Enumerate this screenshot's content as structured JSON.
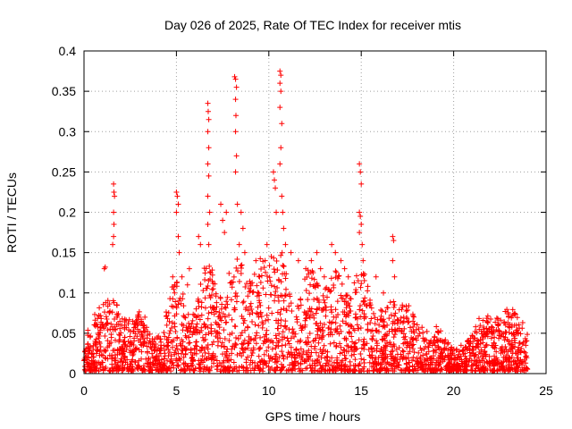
{
  "chart_data": {
    "type": "scatter",
    "title": "Day 026 of 2025, Rate Of TEC Index for receiver mtis",
    "xlabel": "GPS time / hours",
    "ylabel": "ROTI / TECUs",
    "xlim": [
      0,
      25
    ],
    "ylim": [
      0,
      0.4
    ],
    "xticks": [
      0,
      5,
      10,
      15,
      20,
      25
    ],
    "yticks": [
      0,
      0.05,
      0.1,
      0.15,
      0.2,
      0.25,
      0.3,
      0.35,
      0.4
    ],
    "xtick_labels": [
      "0",
      "5",
      "10",
      "15",
      "20",
      "25"
    ],
    "ytick_labels": [
      "0",
      "0.05",
      "0.1",
      "0.15",
      "0.2",
      "0.25",
      "0.3",
      "0.35",
      "0.4"
    ],
    "grid": true,
    "marker": "plus",
    "color": "#ff0000",
    "x_data_range": [
      0,
      24
    ],
    "series": [
      {
        "points": [
          [
            1.1,
            0.13
          ],
          [
            1.15,
            0.132
          ],
          [
            1.6,
            0.235
          ],
          [
            1.62,
            0.225
          ],
          [
            1.65,
            0.22
          ],
          [
            1.6,
            0.2
          ],
          [
            1.62,
            0.185
          ],
          [
            1.6,
            0.17
          ],
          [
            1.55,
            0.16
          ],
          [
            2.4,
            0.04
          ],
          [
            2.9,
            0.07
          ],
          [
            3.1,
            0.065
          ],
          [
            3.2,
            0.06
          ],
          [
            4.8,
            0.12
          ],
          [
            4.9,
            0.1
          ],
          [
            5.0,
            0.225
          ],
          [
            5.05,
            0.22
          ],
          [
            5.1,
            0.21
          ],
          [
            5.0,
            0.2
          ],
          [
            5.1,
            0.17
          ],
          [
            5.15,
            0.15
          ],
          [
            5.3,
            0.12
          ],
          [
            5.7,
            0.13
          ],
          [
            5.6,
            0.11
          ],
          [
            6.2,
            0.17
          ],
          [
            6.3,
            0.16
          ],
          [
            6.7,
            0.335
          ],
          [
            6.72,
            0.325
          ],
          [
            6.75,
            0.315
          ],
          [
            6.7,
            0.3
          ],
          [
            6.75,
            0.28
          ],
          [
            6.7,
            0.26
          ],
          [
            6.75,
            0.245
          ],
          [
            6.7,
            0.22
          ],
          [
            6.8,
            0.2
          ],
          [
            6.7,
            0.185
          ],
          [
            6.75,
            0.16
          ],
          [
            7.4,
            0.21
          ],
          [
            7.5,
            0.19
          ],
          [
            7.6,
            0.175
          ],
          [
            7.7,
            0.2
          ],
          [
            8.15,
            0.368
          ],
          [
            8.2,
            0.365
          ],
          [
            8.25,
            0.355
          ],
          [
            8.2,
            0.34
          ],
          [
            8.22,
            0.32
          ],
          [
            8.2,
            0.3
          ],
          [
            8.25,
            0.27
          ],
          [
            8.2,
            0.25
          ],
          [
            8.3,
            0.21
          ],
          [
            8.5,
            0.2
          ],
          [
            8.6,
            0.18
          ],
          [
            8.4,
            0.16
          ],
          [
            8.7,
            0.15
          ],
          [
            9.3,
            0.14
          ],
          [
            9.5,
            0.12
          ],
          [
            9.8,
            0.14
          ],
          [
            9.9,
            0.16
          ],
          [
            10.25,
            0.25
          ],
          [
            10.3,
            0.24
          ],
          [
            10.35,
            0.23
          ],
          [
            10.4,
            0.2
          ],
          [
            10.6,
            0.375
          ],
          [
            10.65,
            0.37
          ],
          [
            10.6,
            0.36
          ],
          [
            10.65,
            0.35
          ],
          [
            10.6,
            0.33
          ],
          [
            10.7,
            0.31
          ],
          [
            10.65,
            0.28
          ],
          [
            10.6,
            0.26
          ],
          [
            10.7,
            0.22
          ],
          [
            10.75,
            0.2
          ],
          [
            10.8,
            0.18
          ],
          [
            10.9,
            0.16
          ],
          [
            11.2,
            0.15
          ],
          [
            11.6,
            0.14
          ],
          [
            12.0,
            0.13
          ],
          [
            12.3,
            0.14
          ],
          [
            12.6,
            0.15
          ],
          [
            12.8,
            0.13
          ],
          [
            13.0,
            0.12
          ],
          [
            13.4,
            0.16
          ],
          [
            13.6,
            0.15
          ],
          [
            13.9,
            0.14
          ],
          [
            14.1,
            0.13
          ],
          [
            14.3,
            0.12
          ],
          [
            14.9,
            0.26
          ],
          [
            14.95,
            0.25
          ],
          [
            15.0,
            0.235
          ],
          [
            14.9,
            0.2
          ],
          [
            14.95,
            0.195
          ],
          [
            15.0,
            0.185
          ],
          [
            14.9,
            0.175
          ],
          [
            15.05,
            0.16
          ],
          [
            15.1,
            0.14
          ],
          [
            15.8,
            0.12
          ],
          [
            16.2,
            0.1
          ],
          [
            16.7,
            0.17
          ],
          [
            16.75,
            0.165
          ],
          [
            16.7,
            0.14
          ],
          [
            16.8,
            0.12
          ],
          [
            17.3,
            0.07
          ],
          [
            17.8,
            0.065
          ],
          [
            18.4,
            0.04
          ],
          [
            19.0,
            0.035
          ],
          [
            19.5,
            0.03
          ],
          [
            20.4,
            0.035
          ],
          [
            21.0,
            0.03
          ],
          [
            21.6,
            0.055
          ],
          [
            22.2,
            0.045
          ],
          [
            22.8,
            0.045
          ],
          [
            23.4,
            0.06
          ],
          [
            23.5,
            0.05
          ],
          [
            23.9,
            0.035
          ]
        ]
      }
    ]
  }
}
